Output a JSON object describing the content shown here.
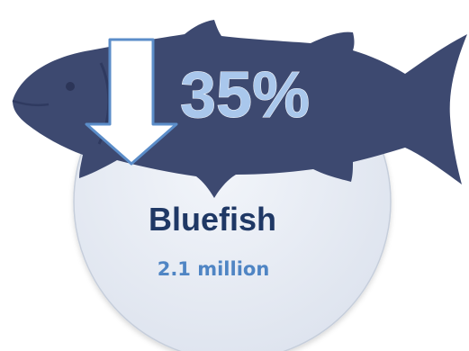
{
  "infographic": {
    "change_percent": "35%",
    "change_direction": "down",
    "species_name": "Bluefish",
    "population": "2.1 million"
  },
  "colors": {
    "fish_silhouette": "#3d4970",
    "circle_fill": "#e5eaf4",
    "circle_stroke": "#c6cedb",
    "arrow_fill": "#ffffff",
    "arrow_stroke": "#5b8dc9",
    "percent_text": "#a9c7ec",
    "species_text": "#1f3865",
    "population_text": "#4f85c4"
  },
  "icons": {
    "fish": "fish-silhouette-icon",
    "arrow": "down-arrow-icon"
  }
}
